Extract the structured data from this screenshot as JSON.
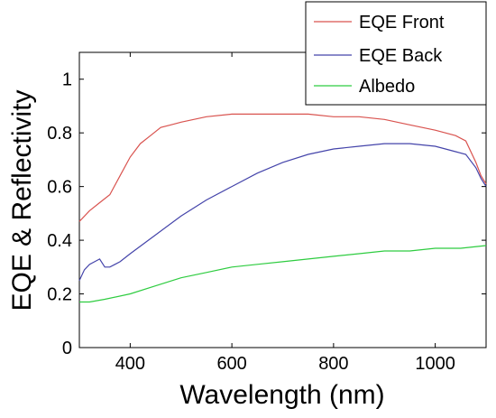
{
  "chart_data": {
    "type": "line",
    "title": "",
    "xlabel": "Wavelength (nm)",
    "ylabel": "EQE & Reflectivity",
    "xlim": [
      300,
      1100
    ],
    "ylim": [
      0,
      1.1
    ],
    "xticks": [
      400,
      600,
      800,
      1000
    ],
    "yticks": [
      0,
      0.2,
      0.4,
      0.6,
      0.8,
      1
    ],
    "ytick_labels": [
      "0",
      "0.2",
      "0.4",
      "0.6",
      "0.8",
      "1"
    ],
    "grid": false,
    "legend_position": "top-right",
    "series": [
      {
        "name": "EQE Front",
        "color": "#d9534f",
        "x": [
          300,
          320,
          340,
          360,
          380,
          400,
          420,
          440,
          460,
          480,
          500,
          550,
          600,
          650,
          700,
          750,
          800,
          850,
          900,
          950,
          1000,
          1020,
          1040,
          1060,
          1080,
          1090,
          1100
        ],
        "y": [
          0.47,
          0.51,
          0.54,
          0.57,
          0.64,
          0.71,
          0.76,
          0.79,
          0.82,
          0.83,
          0.84,
          0.86,
          0.87,
          0.87,
          0.87,
          0.87,
          0.86,
          0.86,
          0.85,
          0.83,
          0.81,
          0.8,
          0.79,
          0.77,
          0.69,
          0.64,
          0.61
        ]
      },
      {
        "name": "EQE Back",
        "color": "#4444aa",
        "x": [
          300,
          310,
          320,
          330,
          340,
          350,
          360,
          370,
          380,
          400,
          450,
          500,
          550,
          600,
          650,
          700,
          750,
          800,
          850,
          900,
          950,
          1000,
          1020,
          1040,
          1060,
          1080,
          1090,
          1100
        ],
        "y": [
          0.25,
          0.29,
          0.31,
          0.32,
          0.33,
          0.3,
          0.3,
          0.31,
          0.32,
          0.35,
          0.42,
          0.49,
          0.55,
          0.6,
          0.65,
          0.69,
          0.72,
          0.74,
          0.75,
          0.76,
          0.76,
          0.75,
          0.74,
          0.73,
          0.72,
          0.67,
          0.63,
          0.6
        ]
      },
      {
        "name": "Albedo",
        "color": "#2ecc40",
        "x": [
          300,
          320,
          350,
          400,
          450,
          500,
          550,
          600,
          650,
          700,
          750,
          800,
          850,
          900,
          950,
          1000,
          1050,
          1100
        ],
        "y": [
          0.17,
          0.17,
          0.18,
          0.2,
          0.23,
          0.26,
          0.28,
          0.3,
          0.31,
          0.32,
          0.33,
          0.34,
          0.35,
          0.36,
          0.36,
          0.37,
          0.37,
          0.38
        ]
      }
    ]
  }
}
